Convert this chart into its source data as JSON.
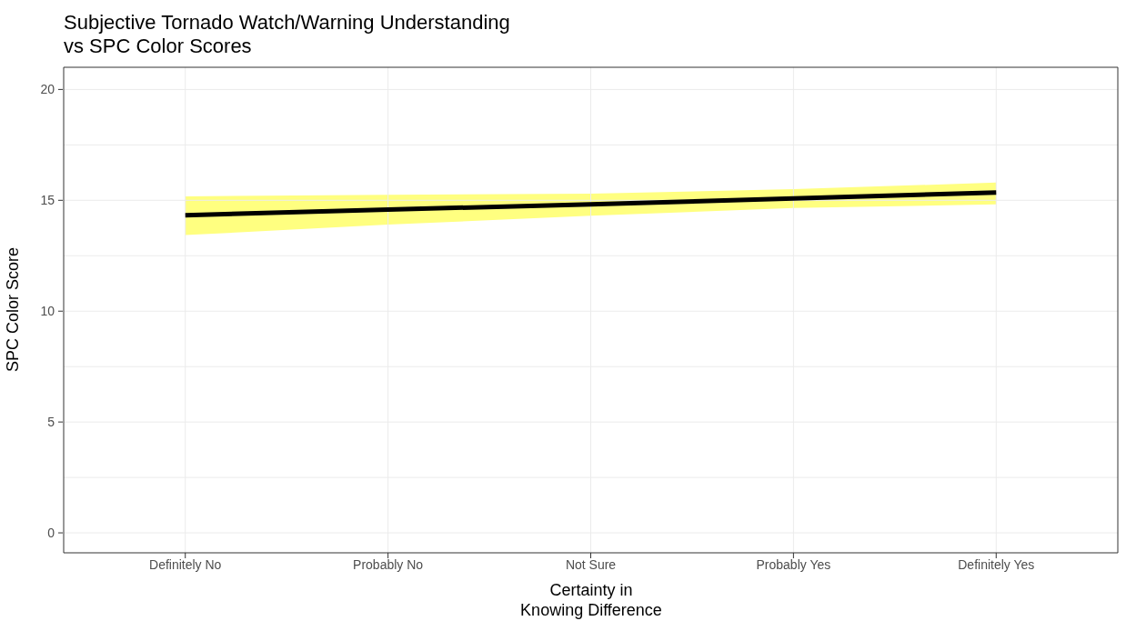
{
  "chart_data": {
    "type": "line",
    "title": "Subjective Tornado Watch/Warning Understanding\nvs SPC Color Scores",
    "xlabel": "Certainty in\nKnowing Difference",
    "ylabel": "SPC Color Score",
    "categories": [
      "Definitely No",
      "Probably No",
      "Not Sure",
      "Probably Yes",
      "Definitely Yes"
    ],
    "series": [
      {
        "color": "#000000",
        "values": [
          14.33,
          14.58,
          14.82,
          15.08,
          15.35
        ],
        "lower": [
          13.43,
          13.9,
          14.3,
          14.65,
          14.82
        ],
        "upper": [
          15.18,
          15.25,
          15.3,
          15.5,
          15.8
        ]
      }
    ],
    "ylim": [
      -0.9,
      21
    ],
    "yticks": [
      0,
      {
        "value": 2.5,
        "label": null
      },
      5,
      {
        "value": 7.5,
        "label": null
      },
      10,
      {
        "value": 12.5,
        "label": null
      },
      15,
      {
        "value": 17.5,
        "label": null
      },
      20
    ],
    "grid": true,
    "legend": false,
    "marker": "none",
    "line_style": "solid"
  }
}
